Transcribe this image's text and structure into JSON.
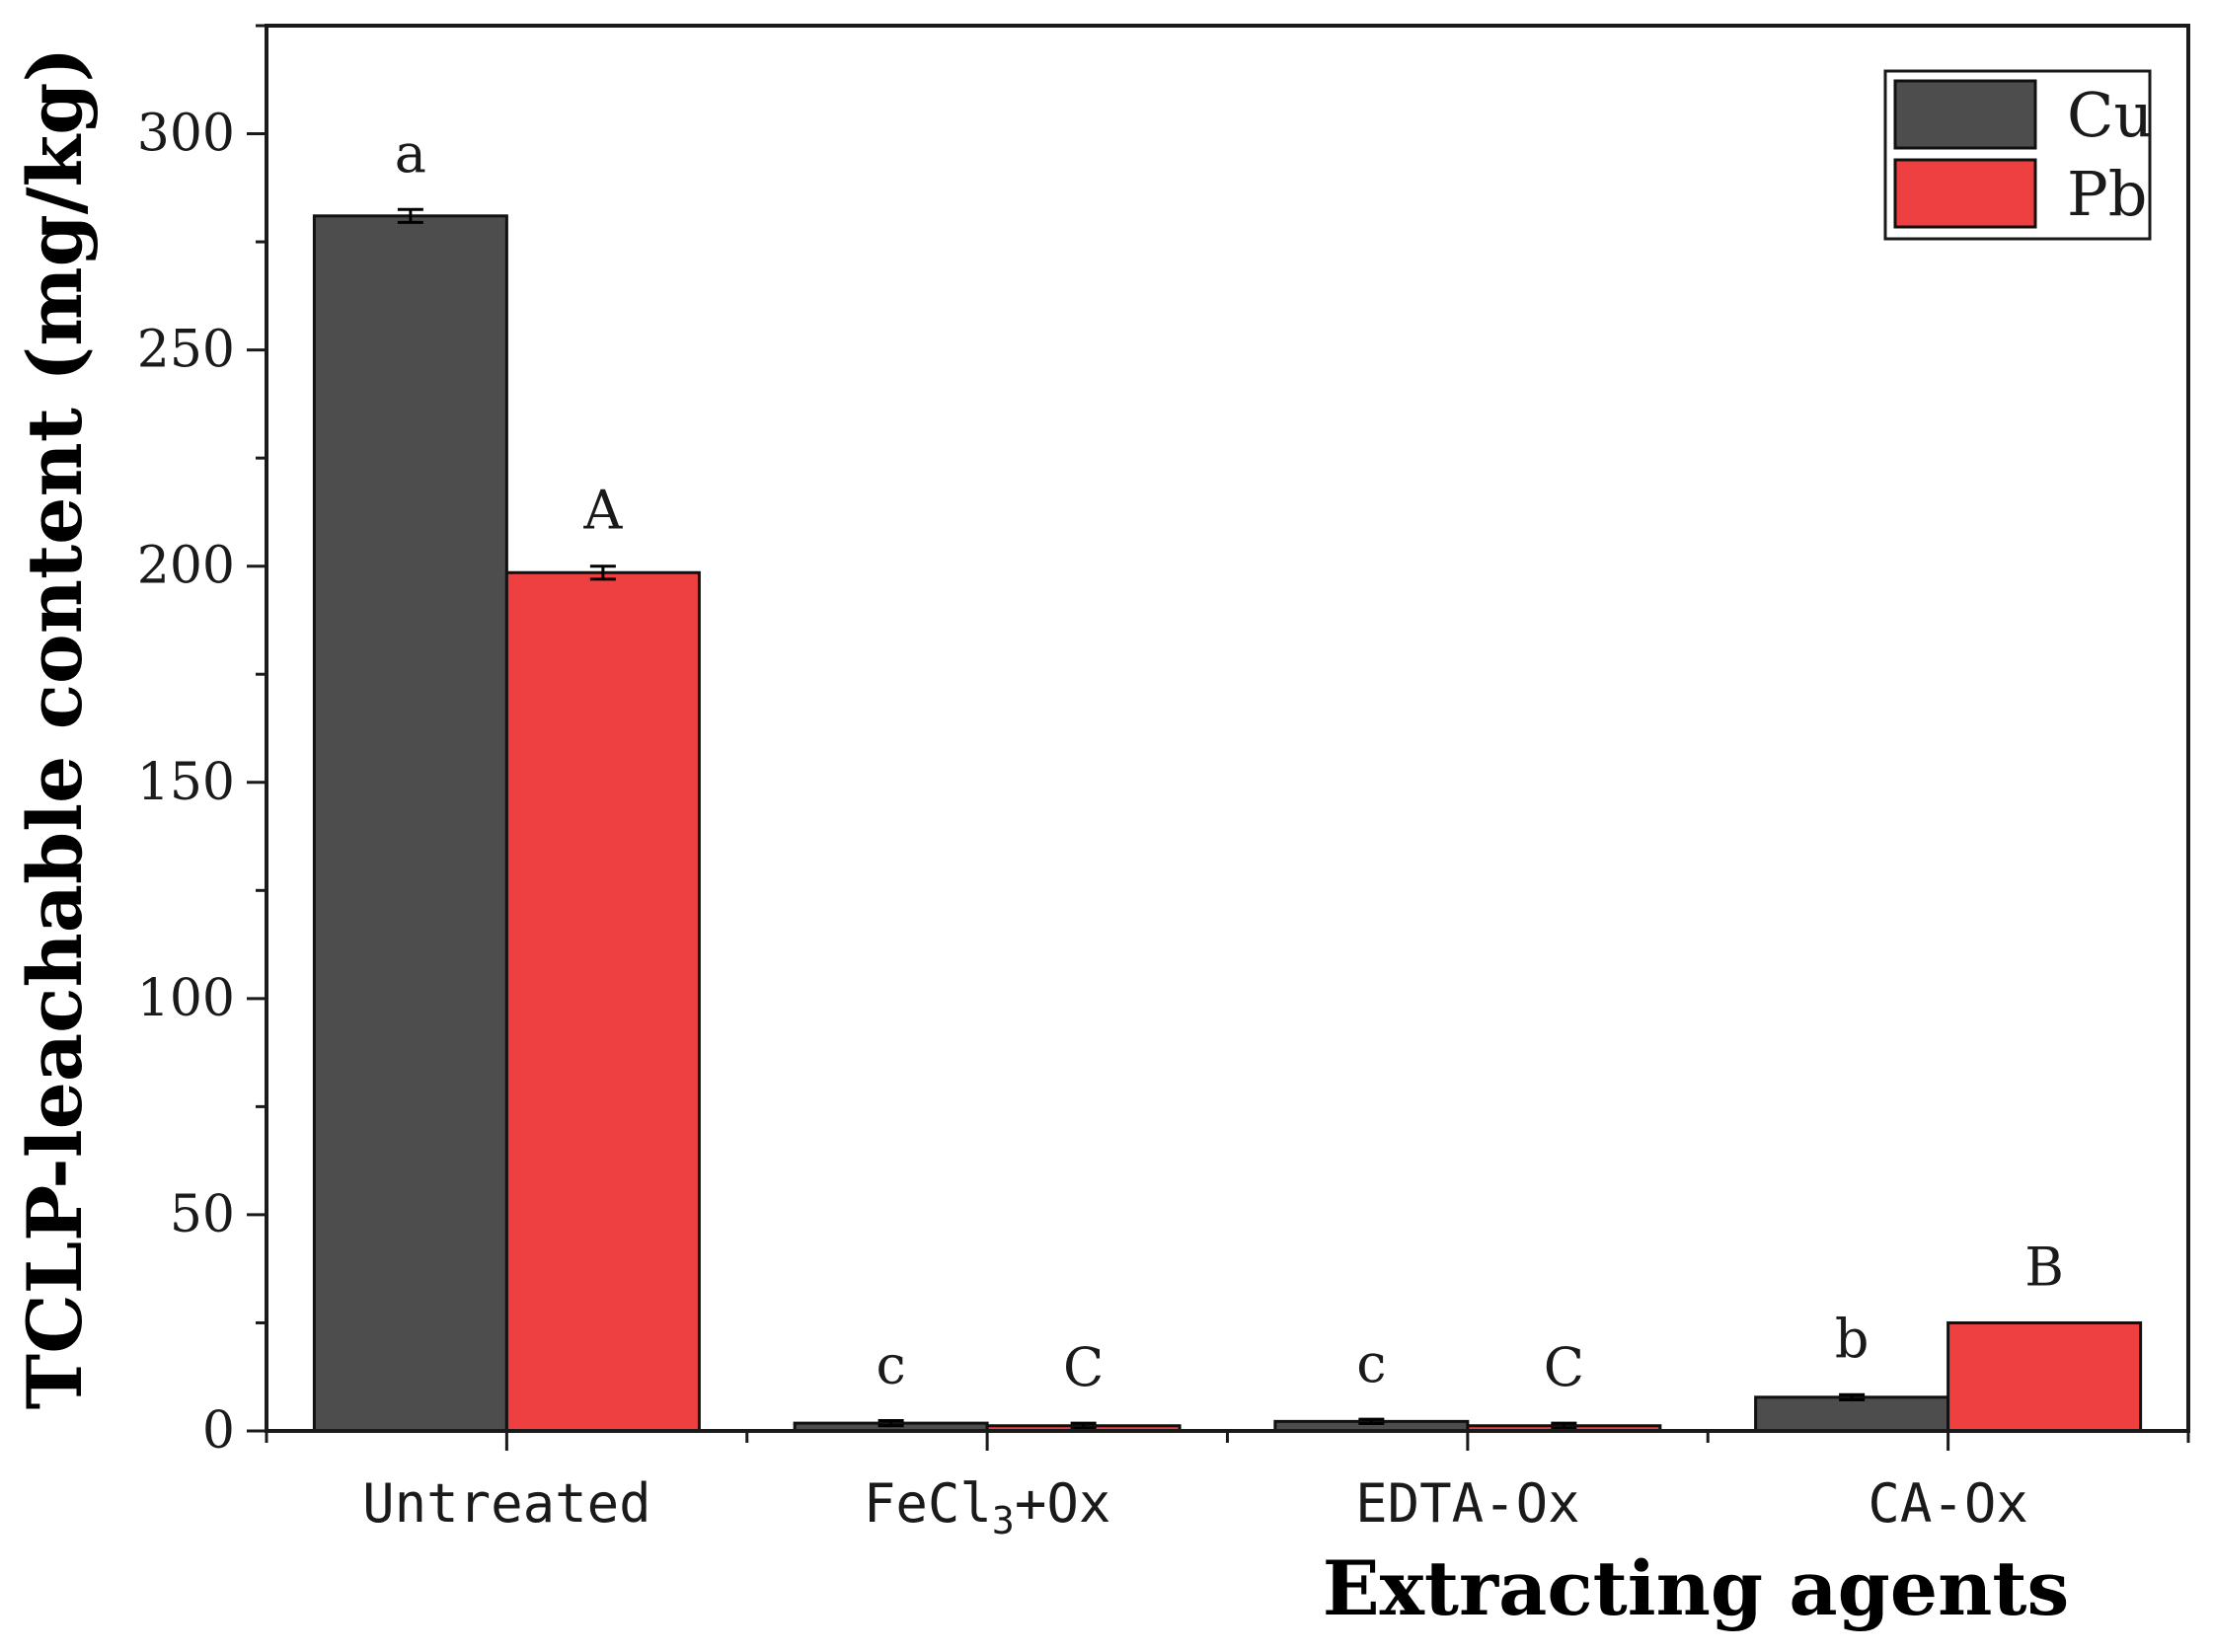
{
  "chart_data": {
    "type": "bar",
    "categories": [
      "Untreated",
      "FeCl3+Ox",
      "EDTA-Ox",
      "CA-Ox"
    ],
    "category_labels": [
      {
        "main": "Untreated",
        "sub": "",
        "tail": ""
      },
      {
        "main": "FeCl",
        "sub": "3",
        "tail": "+Ox"
      },
      {
        "main": "EDTA-Ox",
        "sub": "",
        "tail": ""
      },
      {
        "main": "CA-Ox",
        "sub": "",
        "tail": ""
      }
    ],
    "series": [
      {
        "name": "Cu",
        "color": "#4d4d4d",
        "values": [
          281,
          1.8,
          2.2,
          7.8
        ],
        "errors": [
          1.5,
          0.6,
          0.5,
          0.6
        ],
        "labels": [
          "a",
          "c",
          "c",
          "b"
        ]
      },
      {
        "name": "Pb",
        "color": "#ef4041",
        "values": [
          198.5,
          1.2,
          1.2,
          25
        ],
        "errors": [
          1.5,
          0.6,
          0.6,
          0
        ],
        "labels": [
          "A",
          "C",
          "C",
          "B"
        ]
      }
    ],
    "xlabel": "Extracting agents",
    "ylabel": "TCLP-leachable content (mg/kg)",
    "ylim": [
      0,
      325
    ],
    "yticks": [
      0,
      50,
      100,
      150,
      200,
      250,
      300
    ],
    "legend_position": "top-right",
    "grid": false
  }
}
